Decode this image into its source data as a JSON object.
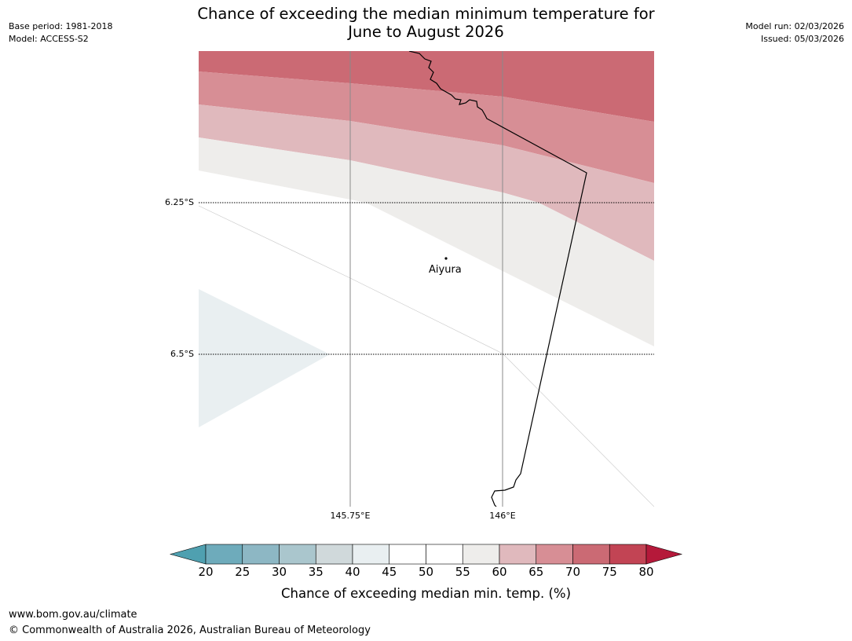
{
  "title": {
    "line1": "Chance of exceeding the median minimum temperature for",
    "line2": "June to August 2026"
  },
  "meta_left": {
    "base_period": "Base period: 1981-2018",
    "model": "Model: ACCESS-S2"
  },
  "meta_right": {
    "model_run": "Model run: 02/03/2026",
    "issued": "Issued: 05/03/2026"
  },
  "map": {
    "lat_labels": [
      "6.25°S",
      "6.5°S"
    ],
    "lon_labels": [
      "145.75°E",
      "146°E"
    ],
    "places": [
      {
        "name": "Aiyura"
      }
    ]
  },
  "legend": {
    "ticks": [
      "20",
      "25",
      "30",
      "35",
      "40",
      "45",
      "50",
      "55",
      "60",
      "65",
      "70",
      "75",
      "80"
    ],
    "colors": [
      "#4fa0b0",
      "#6eabbb",
      "#8db7c4",
      "#aac6cd",
      "#d0d9db",
      "#e9eff1",
      "#ffffff",
      "#ffffff",
      "#eeedeb",
      "#e0b9bd",
      "#d78e95",
      "#cb6a74",
      "#c24454",
      "#b5193a"
    ],
    "title": "Chance of exceeding median min. temp. (%)"
  },
  "footer": {
    "url": "www.bom.gov.au/climate",
    "copyright": "© Commonwealth of Australia 2026, Australian Bureau of Meteorology"
  }
}
